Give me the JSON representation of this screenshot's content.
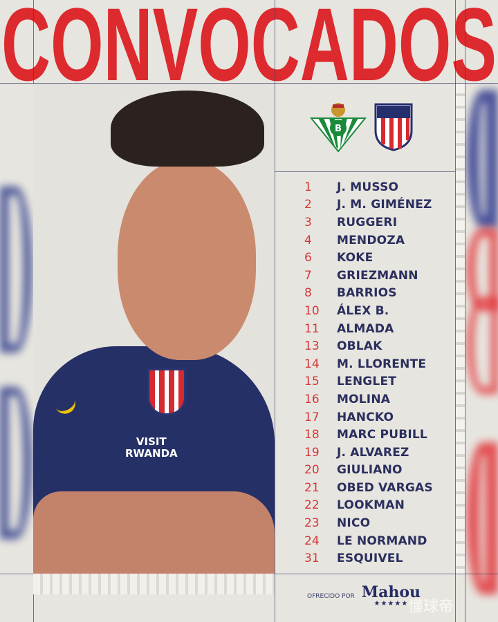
{
  "title": "CONVOCADOS",
  "colors": {
    "red": "#dc2a2e",
    "navy": "#2a2f5e",
    "background": "#e7e5df"
  },
  "photo": {
    "shirt_text": "VISIT\nRWANDA",
    "shirt_line1": "VISIT",
    "shirt_line2": "RWANDA",
    "logo": "atletico-crest",
    "brand": "nike-swoosh"
  },
  "match": {
    "home_crest": "real-betis-crest",
    "away_crest": "atletico-madrid-crest"
  },
  "players": [
    {
      "number": "1",
      "name": "J. MUSSO"
    },
    {
      "number": "2",
      "name": "J. M. GIMÉNEZ"
    },
    {
      "number": "3",
      "name": "RUGGERI"
    },
    {
      "number": "4",
      "name": "MENDOZA"
    },
    {
      "number": "6",
      "name": "KOKE"
    },
    {
      "number": "7",
      "name": "GRIEZMANN"
    },
    {
      "number": "8",
      "name": "BARRIOS"
    },
    {
      "number": "10",
      "name": "ÁLEX B."
    },
    {
      "number": "11",
      "name": "ALMADA"
    },
    {
      "number": "13",
      "name": "OBLAK"
    },
    {
      "number": "14",
      "name": "M. LLORENTE"
    },
    {
      "number": "15",
      "name": "LENGLET"
    },
    {
      "number": "16",
      "name": "MOLINA"
    },
    {
      "number": "17",
      "name": "HANCKO"
    },
    {
      "number": "18",
      "name": "MARC PUBILL"
    },
    {
      "number": "19",
      "name": "J. ALVAREZ"
    },
    {
      "number": "20",
      "name": "GIULIANO"
    },
    {
      "number": "21",
      "name": "OBED VARGAS"
    },
    {
      "number": "22",
      "name": "LOOKMAN"
    },
    {
      "number": "23",
      "name": "NICO"
    },
    {
      "number": "24",
      "name": "LE NORMAND"
    },
    {
      "number": "31",
      "name": "ESQUIVEL"
    }
  ],
  "sponsor": {
    "label": "OFRECIDO POR",
    "brand": "Mahou",
    "stars": "★★★★★"
  },
  "watermark": "懂球帝"
}
